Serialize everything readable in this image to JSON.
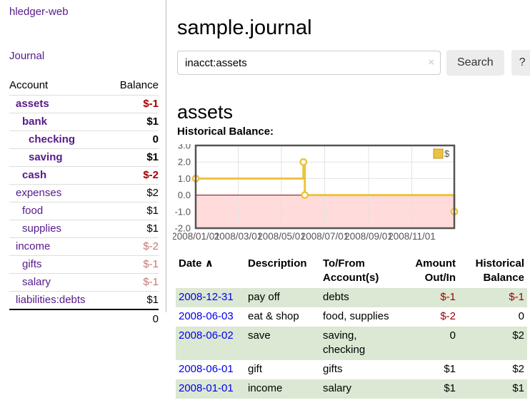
{
  "app": {
    "brand": "hledger-web",
    "nav_journal": "Journal"
  },
  "sidebar": {
    "header": {
      "account": "Account",
      "balance": "Balance"
    },
    "accounts": [
      {
        "name": "assets",
        "indent": 1,
        "balance": "$-1",
        "bold": true,
        "neg": "strong",
        "link": "purple"
      },
      {
        "name": "bank",
        "indent": 2,
        "balance": "$1",
        "bold": true,
        "neg": "none",
        "link": "purple"
      },
      {
        "name": "checking",
        "indent": 3,
        "balance": "0",
        "bold": true,
        "neg": "none",
        "link": "purple"
      },
      {
        "name": "saving",
        "indent": 3,
        "balance": "$1",
        "bold": true,
        "neg": "none",
        "link": "purple"
      },
      {
        "name": "cash",
        "indent": 2,
        "balance": "$-2",
        "bold": true,
        "neg": "strong",
        "link": "purple"
      },
      {
        "name": "expenses",
        "indent": 1,
        "balance": "$2",
        "bold": false,
        "neg": "none",
        "link": "purple"
      },
      {
        "name": "food",
        "indent": 2,
        "balance": "$1",
        "bold": false,
        "neg": "none",
        "link": "purple"
      },
      {
        "name": "supplies",
        "indent": 2,
        "balance": "$1",
        "bold": false,
        "neg": "none",
        "link": "purple"
      },
      {
        "name": "income",
        "indent": 1,
        "balance": "$-2",
        "bold": false,
        "neg": "soft",
        "link": "purple"
      },
      {
        "name": "gifts",
        "indent": 2,
        "balance": "$-1",
        "bold": false,
        "neg": "soft",
        "link": "purple"
      },
      {
        "name": "salary",
        "indent": 2,
        "balance": "$-1",
        "bold": false,
        "neg": "soft",
        "link": "blue"
      },
      {
        "name": "liabilities:debts",
        "indent": 1,
        "balance": "$1",
        "bold": false,
        "neg": "none",
        "link": "purple"
      }
    ],
    "total": "0"
  },
  "header": {
    "title": "sample.journal"
  },
  "search": {
    "value": "inacct:assets",
    "clear_icon": "×",
    "button": "Search",
    "help_button": "?"
  },
  "account_page": {
    "heading": "assets",
    "chart_label": "Historical Balance:"
  },
  "chart_data": {
    "type": "line",
    "title": "Historical Balance:",
    "series": [
      {
        "name": "$",
        "color": "#edc240",
        "step": true,
        "points": [
          [
            "2008-01-01",
            1
          ],
          [
            "2008-06-01",
            2
          ],
          [
            "2008-06-03",
            0
          ],
          [
            "2008-12-31",
            -1
          ]
        ]
      }
    ],
    "xlim": [
      "2008-01-01",
      "2008-12-31"
    ],
    "ylim": [
      -2,
      3
    ],
    "yticks": [
      "3.0",
      "2.0",
      "1.0",
      "0.0",
      "-1.0",
      "-2.0"
    ],
    "xticks": [
      "2008/01/01",
      "2008/03/01",
      "2008/05/01",
      "2008/07/01",
      "2008/09/01",
      "2008/11/01"
    ],
    "legend": [
      {
        "label": "$",
        "color": "#edc240"
      }
    ],
    "legend_position": "top-right",
    "grid": true,
    "negative_fill": "#ffdbdb",
    "zero_line_color": "#8b0000"
  },
  "register": {
    "sort_icon": "∧",
    "columns": [
      "Date",
      "Description",
      "To/From Account(s)",
      "Amount Out/In",
      "Historical Balance"
    ],
    "rows": [
      {
        "date": "2008-12-31",
        "description": "pay off",
        "accounts": "debts",
        "amount": "$-1",
        "amount_neg": true,
        "balance": "$-1",
        "balance_neg": true,
        "shaded": true
      },
      {
        "date": "2008-06-03",
        "description": "eat & shop",
        "accounts": "food, supplies",
        "amount": "$-2",
        "amount_neg": true,
        "balance": "0",
        "balance_neg": false,
        "shaded": false
      },
      {
        "date": "2008-06-02",
        "description": "save",
        "accounts": "saving, checking",
        "amount": "0",
        "amount_neg": false,
        "balance": "$2",
        "balance_neg": false,
        "shaded": true
      },
      {
        "date": "2008-06-01",
        "description": "gift",
        "accounts": "gifts",
        "amount": "$1",
        "amount_neg": false,
        "balance": "$2",
        "balance_neg": false,
        "shaded": false
      },
      {
        "date": "2008-01-01",
        "description": "income",
        "accounts": "salary",
        "amount": "$1",
        "amount_neg": false,
        "balance": "$1",
        "balance_neg": false,
        "shaded": true
      }
    ]
  },
  "colors": {
    "link_purple": "#551a8b",
    "link_blue": "#0000ee",
    "negative_strong": "#a40000",
    "negative_soft": "#c47777",
    "row_stripe_green": "#dbe8d3",
    "chart_gold": "#edc240"
  }
}
